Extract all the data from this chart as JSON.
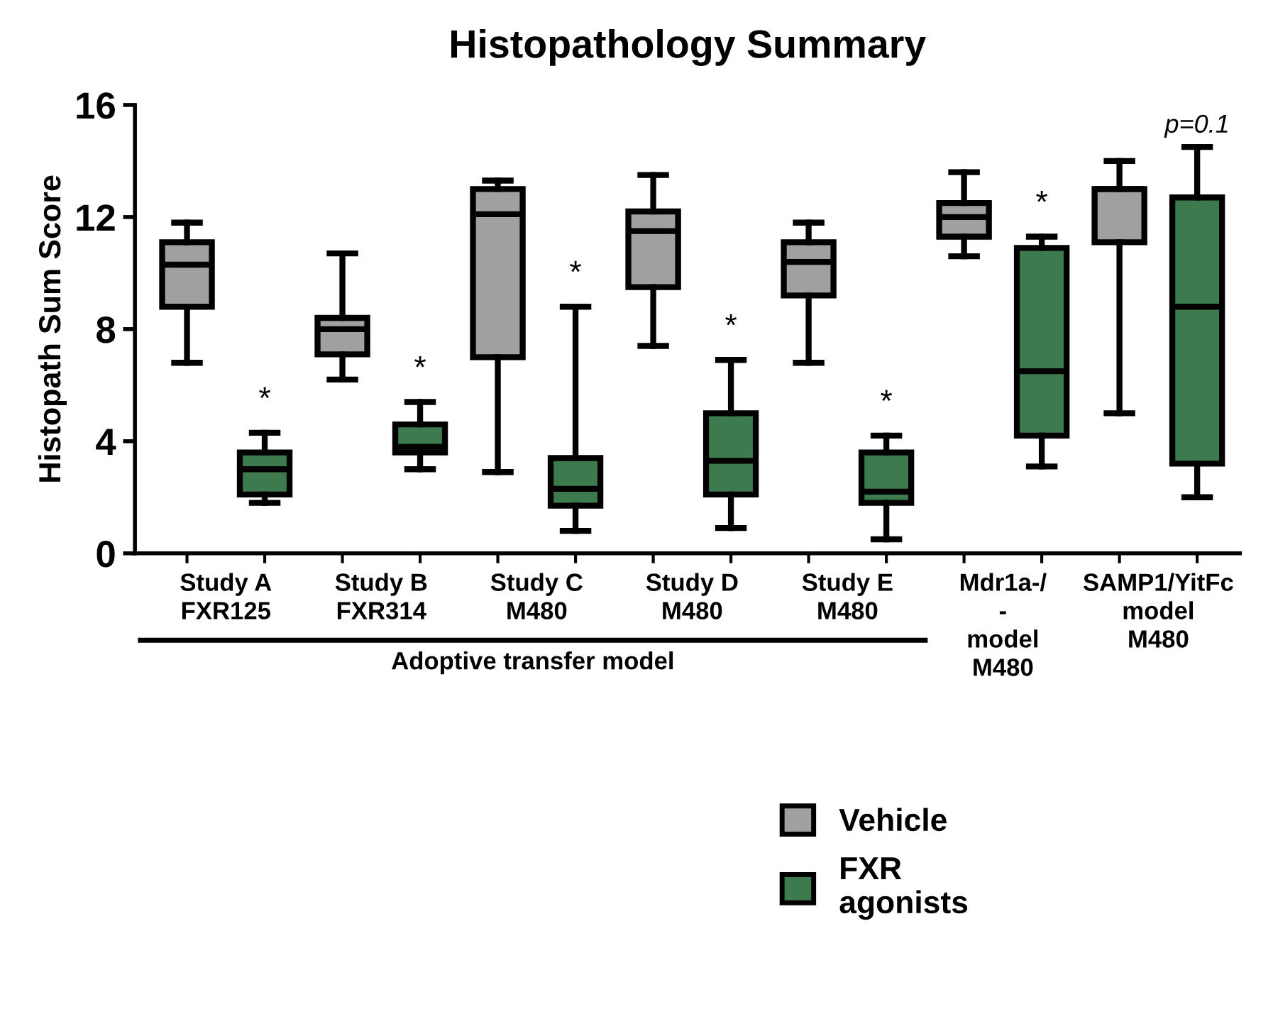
{
  "chart_data": {
    "type": "box",
    "title": "Histopathology Summary",
    "ylabel": "Histopath Sum Score",
    "categories": [
      "Study A\nFXR125",
      "Study B\nFXR314",
      "Study C\nM480",
      "Study D\nM480",
      "Study E\nM480",
      "Mdr1a-/\n-\nmodel\nM480",
      "SAMP1/YitFc\nmodel\nM480"
    ],
    "series": [
      {
        "name": "Vehicle",
        "color": "#a0a0a0",
        "boxes": [
          {
            "low": 6.8,
            "q1": 8.8,
            "median": 10.3,
            "q3": 11.1,
            "high": 11.8
          },
          {
            "low": 6.2,
            "q1": 7.1,
            "median": 8.0,
            "q3": 8.4,
            "high": 10.7
          },
          {
            "low": 2.9,
            "q1": 7.0,
            "median": 12.1,
            "q3": 13.0,
            "high": 13.3
          },
          {
            "low": 7.4,
            "q1": 9.5,
            "median": 11.5,
            "q3": 12.2,
            "high": 13.5
          },
          {
            "low": 6.8,
            "q1": 9.2,
            "median": 10.4,
            "q3": 11.1,
            "high": 11.8
          },
          {
            "low": 10.6,
            "q1": 11.3,
            "median": 12.0,
            "q3": 12.5,
            "high": 13.6
          },
          {
            "low": 5.0,
            "q1": 11.1,
            "median": 13.0,
            "q3": 13.0,
            "high": 14.0
          }
        ]
      },
      {
        "name": "FXR\nagonists",
        "color": "#3d7a4d",
        "boxes": [
          {
            "low": 1.8,
            "q1": 2.1,
            "median": 3.0,
            "q3": 3.6,
            "high": 4.3
          },
          {
            "low": 3.0,
            "q1": 3.6,
            "median": 3.8,
            "q3": 4.6,
            "high": 5.4
          },
          {
            "low": 0.8,
            "q1": 1.7,
            "median": 2.3,
            "q3": 3.4,
            "high": 8.8
          },
          {
            "low": 0.9,
            "q1": 2.1,
            "median": 3.3,
            "q3": 5.0,
            "high": 6.9
          },
          {
            "low": 0.5,
            "q1": 1.8,
            "median": 2.2,
            "q3": 3.6,
            "high": 4.2
          },
          {
            "low": 3.1,
            "q1": 4.2,
            "median": 6.5,
            "q3": 10.9,
            "high": 11.3
          },
          {
            "low": 2.0,
            "q1": 3.2,
            "median": 8.8,
            "q3": 12.7,
            "high": 14.5
          }
        ]
      }
    ],
    "ylim": [
      0,
      16
    ],
    "yticks": [
      0,
      4,
      8,
      12,
      16
    ],
    "grid": false,
    "legend": "bottom",
    "annotations": [
      "*",
      "*",
      "*",
      "*",
      "*",
      "*",
      "p=0.1",
      "Adoptive transfer model"
    ]
  }
}
